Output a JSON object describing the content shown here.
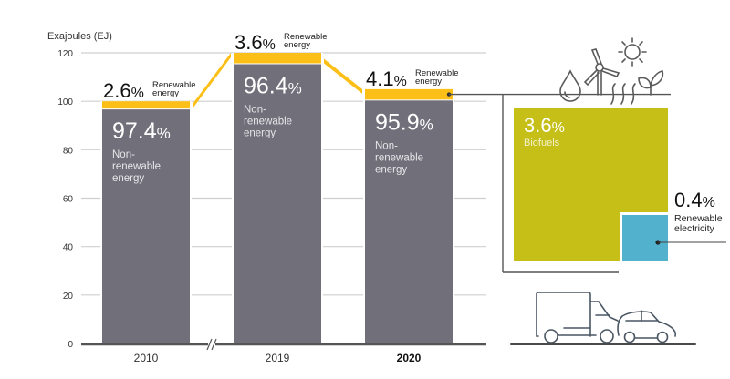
{
  "chart_data": {
    "type": "bar",
    "title": "",
    "ylabel": "Exajoules (EJ)",
    "xlabel": "",
    "ylim": [
      0,
      120
    ],
    "yticks": [
      0,
      20,
      40,
      60,
      80,
      100,
      120
    ],
    "grid": true,
    "axis_break_between": [
      "2010",
      "2019"
    ],
    "categories": [
      "2010",
      "2019",
      "2020"
    ],
    "highlighted_category": "2020",
    "totals_ej": [
      100,
      120,
      105
    ],
    "series": [
      {
        "name": "Non-renewable energy",
        "label_lines": [
          "Non-",
          "renewable",
          "energy"
        ],
        "percent_labels": [
          "97.4%",
          "96.4%",
          "95.9%"
        ],
        "percents": [
          97.4,
          96.4,
          95.9
        ],
        "color": "#716f7a"
      },
      {
        "name": "Renewable energy",
        "label_lines": [
          "Renewable",
          "energy"
        ],
        "percent_labels": [
          "2.6%",
          "3.6%",
          "4.1%"
        ],
        "percents": [
          2.6,
          3.6,
          4.1
        ],
        "color": "#fbbf18"
      }
    ],
    "breakdown": {
      "of_category": "2020",
      "of_series": "Renewable energy",
      "items": [
        {
          "name": "Biofuels",
          "percent": 3.6,
          "percent_label": "3.6%",
          "label_lines": [
            "Biofuels"
          ],
          "color": "#c5bf17"
        },
        {
          "name": "Renewable electricity",
          "percent": 0.4,
          "percent_label": "0.4%",
          "label_lines": [
            "Renewable",
            "electricity"
          ],
          "color": "#52b1cc"
        }
      ]
    },
    "icons": [
      "water-drop-icon",
      "wind-turbine-icon",
      "sun-icon",
      "heat-waves-icon",
      "leaf-sprout-icon",
      "truck-icon",
      "car-icon"
    ]
  }
}
